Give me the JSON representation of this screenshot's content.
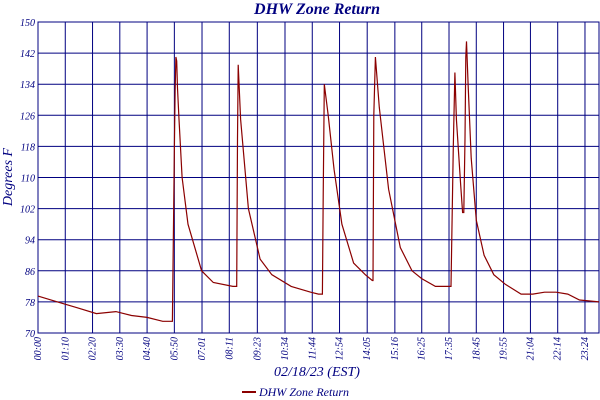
{
  "chart_data": {
    "type": "line",
    "title": "DHW Zone Return",
    "xlabel": "02/18/23 (EST)",
    "ylabel": "Degrees F",
    "ylim": [
      70,
      150
    ],
    "yticks": [
      70,
      78,
      86,
      94,
      102,
      110,
      118,
      126,
      134,
      142,
      150
    ],
    "xlim": [
      0,
      1440
    ],
    "xtick_minutes": [
      0,
      70,
      140,
      210,
      280,
      350,
      421,
      491,
      563,
      634,
      704,
      774,
      845,
      916,
      985,
      1055,
      1125,
      1195,
      1264,
      1334,
      1404
    ],
    "xtick_labels": [
      "00:00",
      "01:10",
      "02:20",
      "03:30",
      "04:40",
      "05:50",
      "07:01",
      "08:11",
      "09:23",
      "10:34",
      "11:44",
      "12:54",
      "14:05",
      "15:16",
      "16:25",
      "17:35",
      "18:45",
      "19:55",
      "21:04",
      "22:14",
      "23:24"
    ],
    "grid": true,
    "legend_position": "bottom",
    "series": [
      {
        "name": "DHW Zone Return",
        "color": "#8b0000",
        "x": [
          0,
          50,
          100,
          150,
          200,
          240,
          280,
          320,
          345,
          350,
          352,
          354,
          356,
          358,
          362,
          370,
          385,
          420,
          450,
          500,
          510,
          512,
          514,
          520,
          540,
          570,
          600,
          650,
          700,
          720,
          730,
          732,
          735,
          745,
          760,
          780,
          810,
          840,
          858,
          860,
          862,
          866,
          876,
          900,
          930,
          960,
          985,
          1020,
          1050,
          1060,
          1066,
          1070,
          1074,
          1085,
          1090,
          1093,
          1096,
          1098,
          1100,
          1104,
          1112,
          1125,
          1145,
          1170,
          1200,
          1240,
          1270,
          1300,
          1330,
          1360,
          1390,
          1440
        ],
        "y": [
          79.5,
          78,
          76.5,
          75,
          75.5,
          74.5,
          74,
          73,
          73,
          118,
          132,
          141,
          140,
          133,
          125,
          110,
          98,
          86,
          83,
          82,
          82,
          120,
          139,
          125,
          102,
          89,
          85,
          82,
          80.5,
          80,
          80,
          105,
          134,
          126,
          112,
          98,
          88,
          85,
          83.5,
          83.5,
          126,
          141,
          128,
          107,
          92,
          86,
          84,
          82,
          82,
          82,
          118,
          137,
          125,
          108,
          101,
          101,
          120,
          141,
          145,
          134,
          115,
          99,
          90,
          85,
          82.5,
          80,
          80,
          80.5,
          80.5,
          80,
          78.5,
          78
        ]
      }
    ]
  }
}
